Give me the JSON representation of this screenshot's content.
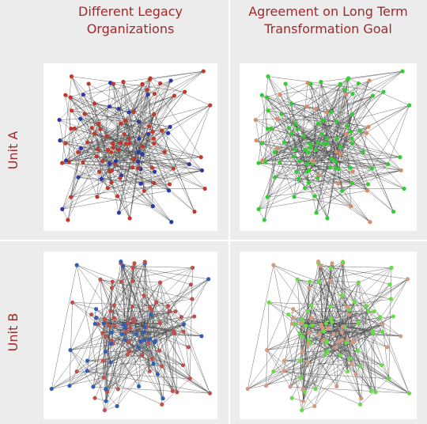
{
  "header": {
    "columns": [
      [
        "Different Legacy",
        "Organizations"
      ],
      [
        "Agreement on Long Term",
        "Transformation Goal"
      ]
    ]
  },
  "rows": [
    "Unit A",
    "Unit B"
  ]
}
